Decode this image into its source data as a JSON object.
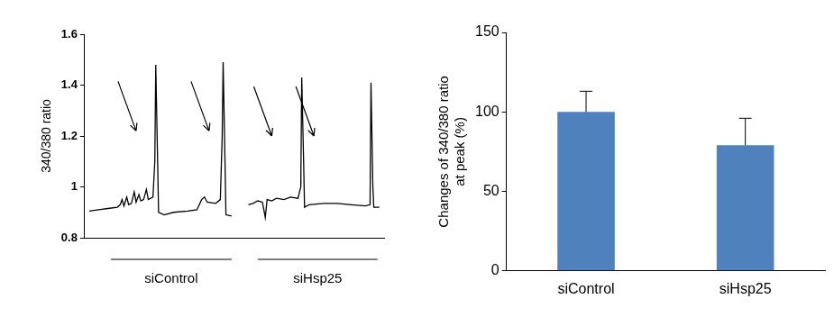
{
  "chart_data": [
    {
      "type": "line",
      "ylabel": "340/380 ratio",
      "x": [
        10,
        20,
        30,
        40,
        43,
        45,
        47,
        50,
        52,
        55,
        58,
        60,
        63,
        65,
        68,
        71,
        73,
        78,
        80,
        81,
        83,
        84,
        90,
        100,
        115,
        125,
        130,
        133,
        136,
        145,
        150,
        152,
        153,
        155,
        156,
        162,
        170,
        180,
        185,
        190,
        195,
        198,
        200,
        205,
        210,
        218,
        225,
        233,
        236,
        237,
        239,
        240,
        245,
        260,
        275,
        290,
        305,
        310,
        311,
        313,
        314,
        320
      ],
      "values": [
        0.905,
        0.91,
        0.915,
        0.92,
        0.93,
        0.95,
        0.925,
        0.96,
        0.93,
        0.935,
        0.98,
        0.94,
        0.97,
        0.945,
        0.95,
        0.99,
        0.95,
        0.96,
        1.1,
        1.48,
        1.1,
        0.9,
        0.89,
        0.9,
        0.905,
        0.91,
        0.95,
        0.96,
        0.94,
        0.935,
        0.95,
        1.2,
        1.49,
        1.1,
        0.89,
        0.885,
        null,
        0.93,
        0.935,
        0.945,
        0.94,
        0.88,
        0.95,
        0.945,
        0.955,
        0.95,
        0.96,
        0.955,
        1.0,
        1.43,
        1.1,
        0.92,
        0.93,
        0.935,
        0.935,
        0.93,
        0.925,
        0.93,
        1.41,
        1.0,
        0.92,
        0.92
      ],
      "color": "#000000",
      "xlim": [
        5,
        325
      ],
      "ylim": [
        0.8,
        1.6
      ],
      "yticks": [
        0.8,
        1,
        1.2,
        1.4,
        1.6
      ],
      "tick_labels": "y",
      "grid": false,
      "arrows": [
        {
          "x": 60,
          "y": 1.22
        },
        {
          "x": 138,
          "y": 1.22
        },
        {
          "x": 205,
          "y": 1.2
        },
        {
          "x": 250,
          "y": 1.2
        }
      ],
      "groups": [
        {
          "label": "siControl",
          "x_range": [
            33,
            162
          ]
        },
        {
          "label": "siHsp25",
          "x_range": [
            190,
            318
          ]
        }
      ]
    },
    {
      "type": "bar",
      "ylabel": [
        "Changes of 340/380 ratio",
        "at peak (%)"
      ],
      "categories": [
        "siControl",
        "siHsp25"
      ],
      "values": [
        100,
        79
      ],
      "errors": [
        13,
        17
      ],
      "color": "#4f81bd",
      "ylim": [
        0,
        150
      ],
      "yticks": [
        0,
        50,
        100,
        150
      ],
      "grid": false
    }
  ]
}
